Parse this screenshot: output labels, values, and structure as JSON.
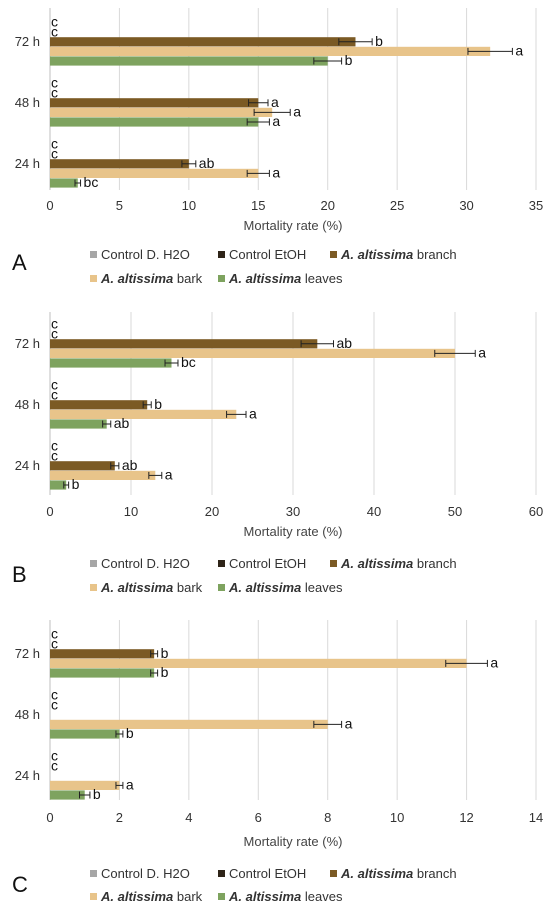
{
  "colors": {
    "control_h2o": "#a6a6a6",
    "control_etoh": "#2e2418",
    "branch": "#7b5a24",
    "bark": "#e8c48a",
    "leaves": "#7ea35f",
    "grid": "#d9d9d9",
    "axis": "#bfbfbf"
  },
  "legend": {
    "items": [
      {
        "key": "control_h2o",
        "parts": [
          {
            "text": "Control D. H2O",
            "bold": false
          }
        ]
      },
      {
        "key": "control_etoh",
        "parts": [
          {
            "text": "Control EtOH",
            "bold": false
          }
        ]
      },
      {
        "key": "branch",
        "parts": [
          {
            "text": "A. altissima",
            "bold": true
          },
          {
            "text": " branch",
            "bold": false
          }
        ]
      },
      {
        "key": "bark",
        "parts": [
          {
            "text": "A. altissima",
            "bold": true
          },
          {
            "text": " bark",
            "bold": false
          }
        ]
      },
      {
        "key": "leaves",
        "parts": [
          {
            "text": "A. altissima",
            "bold": true
          },
          {
            "text": " leaves",
            "bold": false
          }
        ]
      }
    ]
  },
  "chart_data": [
    {
      "panel": "A",
      "type": "bar",
      "orientation": "horizontal",
      "categories": [
        "24 h",
        "48 h",
        "72 h"
      ],
      "xlabel": "Mortality rate (%)",
      "xlim": [
        0,
        35
      ],
      "xticks": [
        0,
        5,
        10,
        15,
        20,
        25,
        30,
        35
      ],
      "grid": true,
      "legend_position": "bottom",
      "series": [
        {
          "name": "Control D. H2O",
          "key": "control_h2o",
          "values": [
            0,
            0,
            0
          ],
          "errors": [
            0,
            0,
            0
          ],
          "labels": [
            "c",
            "c",
            "c"
          ]
        },
        {
          "name": "Control EtOH",
          "key": "control_etoh",
          "values": [
            0,
            0,
            0
          ],
          "errors": [
            0,
            0,
            0
          ],
          "labels": [
            "c",
            "c",
            "c"
          ]
        },
        {
          "name": "A. altissima branch",
          "key": "branch",
          "values": [
            10,
            15,
            22
          ],
          "errors": [
            0.5,
            0.7,
            1.2
          ],
          "labels": [
            "ab",
            "a",
            "b"
          ]
        },
        {
          "name": "A. altissima bark",
          "key": "bark",
          "values": [
            15,
            16,
            31.7
          ],
          "errors": [
            0.8,
            1.3,
            1.6
          ],
          "labels": [
            "a",
            "a",
            "a"
          ]
        },
        {
          "name": "A. altissima leaves",
          "key": "leaves",
          "values": [
            2,
            15,
            20
          ],
          "errors": [
            0.2,
            0.8,
            1.0
          ],
          "labels": [
            "bc",
            "a",
            "b"
          ]
        }
      ]
    },
    {
      "panel": "B",
      "type": "bar",
      "orientation": "horizontal",
      "categories": [
        "24 h",
        "48 h",
        "72 h"
      ],
      "xlabel": "Mortality rate (%)",
      "xlim": [
        0,
        60
      ],
      "xticks": [
        0,
        10,
        20,
        30,
        40,
        50,
        60
      ],
      "grid": true,
      "legend_position": "bottom",
      "series": [
        {
          "name": "Control D. H2O",
          "key": "control_h2o",
          "values": [
            0,
            0,
            0
          ],
          "errors": [
            0,
            0,
            0
          ],
          "labels": [
            "c",
            "c",
            "c"
          ]
        },
        {
          "name": "Control EtOH",
          "key": "control_etoh",
          "values": [
            0,
            0,
            0
          ],
          "errors": [
            0,
            0,
            0
          ],
          "labels": [
            "c",
            "c",
            "c"
          ]
        },
        {
          "name": "A. altissima branch",
          "key": "branch",
          "values": [
            8,
            12,
            33
          ],
          "errors": [
            0.5,
            0.5,
            2.0
          ],
          "labels": [
            "ab",
            "b",
            "ab"
          ]
        },
        {
          "name": "A. altissima bark",
          "key": "bark",
          "values": [
            13,
            23,
            50
          ],
          "errors": [
            0.8,
            1.2,
            2.5
          ],
          "labels": [
            "a",
            "a",
            "a"
          ]
        },
        {
          "name": "A. altissima leaves",
          "key": "leaves",
          "values": [
            2,
            7,
            15
          ],
          "errors": [
            0.3,
            0.5,
            0.8
          ],
          "labels": [
            "b",
            "ab",
            "bc"
          ]
        }
      ]
    },
    {
      "panel": "C",
      "type": "bar",
      "orientation": "horizontal",
      "categories": [
        "24 h",
        "48 h",
        "72 h"
      ],
      "xlabel": "Mortality rate (%)",
      "xlim": [
        0,
        14
      ],
      "xticks": [
        0,
        2,
        4,
        6,
        8,
        10,
        12,
        14
      ],
      "grid": true,
      "legend_position": "bottom",
      "series": [
        {
          "name": "Control D. H2O",
          "key": "control_h2o",
          "values": [
            0,
            0,
            0
          ],
          "errors": [
            0,
            0,
            0
          ],
          "labels": [
            "c",
            "c",
            "c"
          ]
        },
        {
          "name": "Control EtOH",
          "key": "control_etoh",
          "values": [
            0,
            0,
            0
          ],
          "errors": [
            0,
            0,
            0
          ],
          "labels": [
            "c",
            "c",
            "c"
          ]
        },
        {
          "name": "A. altissima branch",
          "key": "branch",
          "values": [
            0,
            0,
            3
          ],
          "errors": [
            0,
            0,
            0.1
          ],
          "labels": [
            "",
            "",
            "b"
          ]
        },
        {
          "name": "A. altissima bark",
          "key": "bark",
          "values": [
            2,
            8,
            12
          ],
          "errors": [
            0.1,
            0.4,
            0.6
          ],
          "labels": [
            "a",
            "a",
            "a"
          ]
        },
        {
          "name": "A. altissima leaves",
          "key": "leaves",
          "values": [
            1,
            2,
            3
          ],
          "errors": [
            0.15,
            0.1,
            0.1
          ],
          "labels": [
            "b",
            "b",
            "b"
          ]
        }
      ]
    }
  ]
}
